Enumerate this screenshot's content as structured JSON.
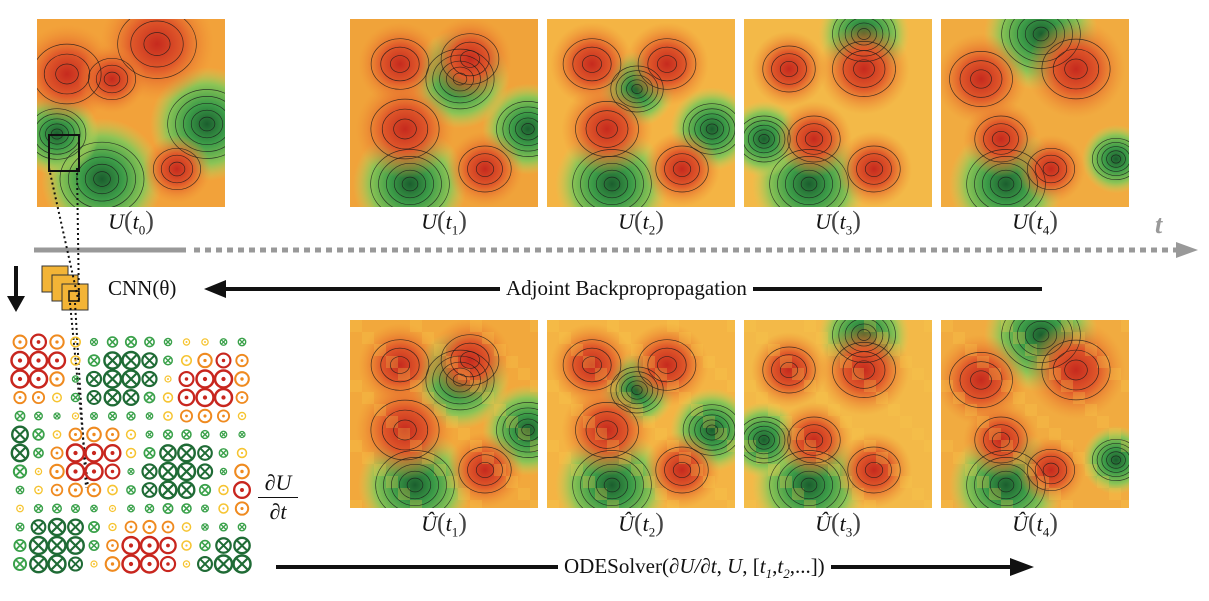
{
  "labels": {
    "u": "U",
    "uhat": "Û",
    "t0": "0",
    "t1": "1",
    "t2": "2",
    "t3": "3",
    "t4": "4",
    "time_axis": "t",
    "cnn": "CNN(θ)",
    "adjoint": "Adjoint Backpropropagation",
    "deriv_num": "∂U",
    "deriv_den": "∂t",
    "ode_prefix": "ODESolver(",
    "ode_dudt": "∂U/∂t",
    "ode_u": "U",
    "ode_bracket_open": "[",
    "ode_t": "t",
    "ode_t1_sub": "1",
    "ode_t2_sub": "2",
    "ode_tail": ",...])"
  },
  "colors": {
    "red": "#c8261e",
    "orange": "#ef8a1f",
    "yellow": "#f6c431",
    "green": "#3aa14a",
    "darkgreen": "#1f6b35",
    "axis_gray": "#999999",
    "cnn_box": "#f3b436"
  },
  "icons": {
    "circle_dot": "circled-dot-icon",
    "circle_x": "circled-x-icon"
  }
}
